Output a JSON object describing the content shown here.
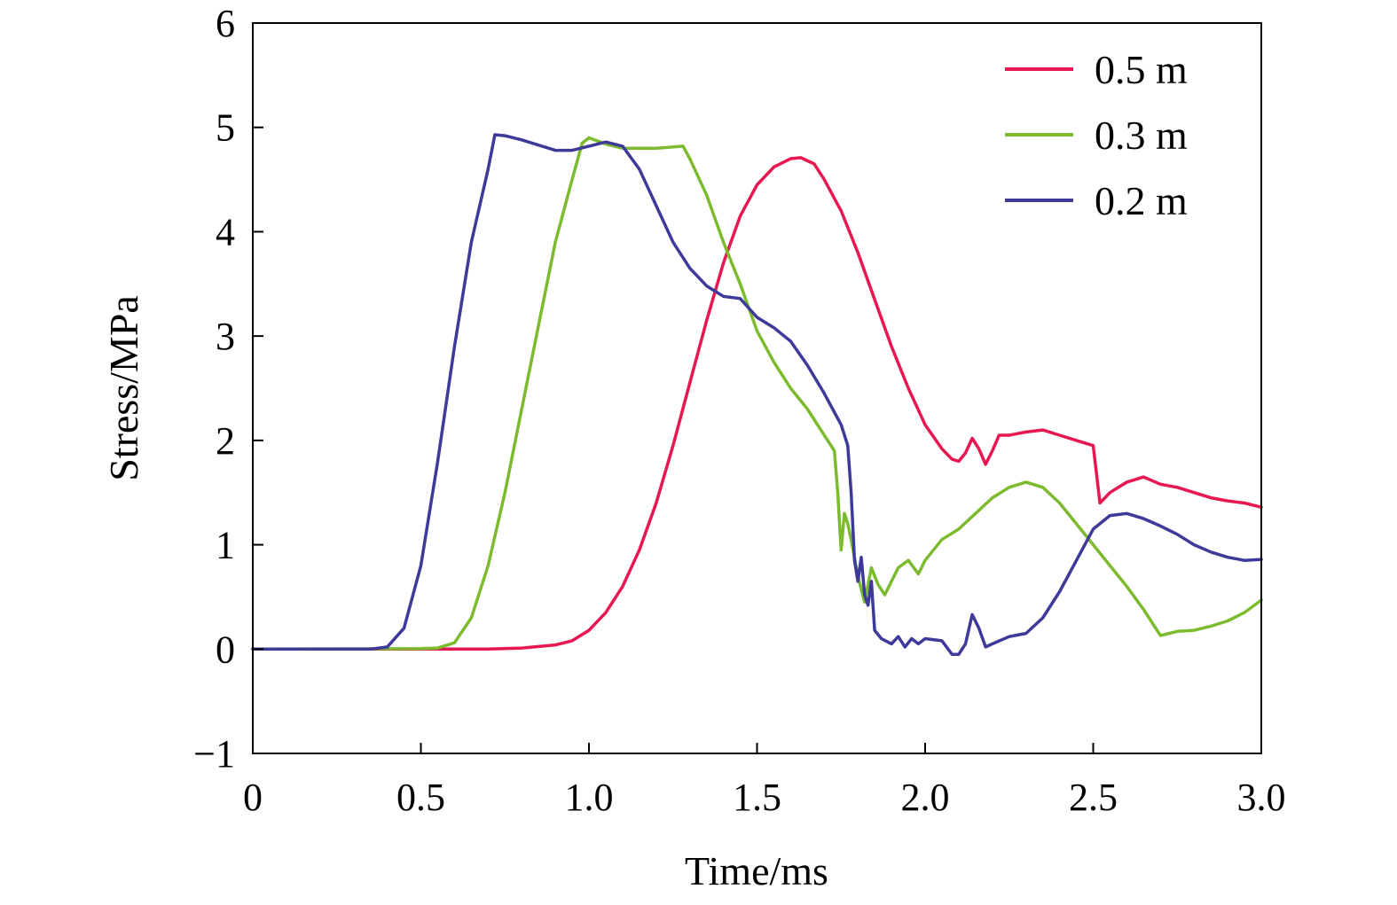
{
  "chart_data": {
    "type": "line",
    "title": "",
    "xlabel": "Time/ms",
    "ylabel": "Stress/MPa",
    "xlim": [
      0,
      3.0
    ],
    "ylim": [
      -1,
      6
    ],
    "xticks": [
      {
        "value": 0,
        "label": "0"
      },
      {
        "value": 0.5,
        "label": "0.5"
      },
      {
        "value": 1.0,
        "label": "1.0"
      },
      {
        "value": 1.5,
        "label": "1.5"
      },
      {
        "value": 2.0,
        "label": "2.0"
      },
      {
        "value": 2.5,
        "label": "2.5"
      },
      {
        "value": 3.0,
        "label": "3.0"
      }
    ],
    "yticks": [
      {
        "value": -1,
        "label": "−1"
      },
      {
        "value": 0,
        "label": "0"
      },
      {
        "value": 1,
        "label": "1"
      },
      {
        "value": 2,
        "label": "2"
      },
      {
        "value": 3,
        "label": "3"
      },
      {
        "value": 4,
        "label": "4"
      },
      {
        "value": 5,
        "label": "5"
      },
      {
        "value": 6,
        "label": "6"
      }
    ],
    "grid": false,
    "legend_position": "top-right",
    "series": [
      {
        "name": "0.5 m",
        "color": "#e8174f",
        "points": [
          [
            0,
            0
          ],
          [
            0.5,
            0
          ],
          [
            0.7,
            0
          ],
          [
            0.8,
            0.01
          ],
          [
            0.9,
            0.04
          ],
          [
            0.95,
            0.08
          ],
          [
            1.0,
            0.18
          ],
          [
            1.05,
            0.35
          ],
          [
            1.1,
            0.6
          ],
          [
            1.15,
            0.95
          ],
          [
            1.2,
            1.4
          ],
          [
            1.25,
            1.95
          ],
          [
            1.3,
            2.55
          ],
          [
            1.35,
            3.15
          ],
          [
            1.4,
            3.7
          ],
          [
            1.45,
            4.15
          ],
          [
            1.5,
            4.45
          ],
          [
            1.55,
            4.62
          ],
          [
            1.6,
            4.7
          ],
          [
            1.63,
            4.71
          ],
          [
            1.67,
            4.65
          ],
          [
            1.7,
            4.5
          ],
          [
            1.75,
            4.2
          ],
          [
            1.8,
            3.8
          ],
          [
            1.85,
            3.35
          ],
          [
            1.9,
            2.9
          ],
          [
            1.95,
            2.5
          ],
          [
            2.0,
            2.15
          ],
          [
            2.05,
            1.92
          ],
          [
            2.08,
            1.82
          ],
          [
            2.1,
            1.8
          ],
          [
            2.12,
            1.88
          ],
          [
            2.14,
            2.02
          ],
          [
            2.16,
            1.92
          ],
          [
            2.18,
            1.77
          ],
          [
            2.2,
            1.9
          ],
          [
            2.22,
            2.05
          ],
          [
            2.25,
            2.05
          ],
          [
            2.3,
            2.08
          ],
          [
            2.35,
            2.1
          ],
          [
            2.4,
            2.05
          ],
          [
            2.45,
            2.0
          ],
          [
            2.5,
            1.95
          ],
          [
            2.52,
            1.4
          ],
          [
            2.55,
            1.5
          ],
          [
            2.6,
            1.6
          ],
          [
            2.65,
            1.65
          ],
          [
            2.7,
            1.58
          ],
          [
            2.75,
            1.55
          ],
          [
            2.8,
            1.5
          ],
          [
            2.85,
            1.45
          ],
          [
            2.9,
            1.42
          ],
          [
            2.95,
            1.4
          ],
          [
            3.0,
            1.36
          ]
        ]
      },
      {
        "name": "0.3 m",
        "color": "#7cbb2e",
        "points": [
          [
            0,
            0
          ],
          [
            0.5,
            0.005
          ],
          [
            0.55,
            0.01
          ],
          [
            0.6,
            0.06
          ],
          [
            0.65,
            0.3
          ],
          [
            0.7,
            0.8
          ],
          [
            0.75,
            1.5
          ],
          [
            0.8,
            2.3
          ],
          [
            0.85,
            3.1
          ],
          [
            0.9,
            3.9
          ],
          [
            0.95,
            4.5
          ],
          [
            0.98,
            4.85
          ],
          [
            1.0,
            4.9
          ],
          [
            1.05,
            4.84
          ],
          [
            1.1,
            4.8
          ],
          [
            1.2,
            4.8
          ],
          [
            1.28,
            4.82
          ],
          [
            1.3,
            4.7
          ],
          [
            1.35,
            4.35
          ],
          [
            1.4,
            3.9
          ],
          [
            1.45,
            3.5
          ],
          [
            1.5,
            3.05
          ],
          [
            1.55,
            2.75
          ],
          [
            1.6,
            2.5
          ],
          [
            1.65,
            2.3
          ],
          [
            1.7,
            2.05
          ],
          [
            1.73,
            1.9
          ],
          [
            1.74,
            1.5
          ],
          [
            1.75,
            0.95
          ],
          [
            1.76,
            1.3
          ],
          [
            1.77,
            1.2
          ],
          [
            1.78,
            1.05
          ],
          [
            1.8,
            0.7
          ],
          [
            1.82,
            0.45
          ],
          [
            1.84,
            0.78
          ],
          [
            1.86,
            0.62
          ],
          [
            1.88,
            0.52
          ],
          [
            1.9,
            0.65
          ],
          [
            1.92,
            0.78
          ],
          [
            1.95,
            0.85
          ],
          [
            1.98,
            0.72
          ],
          [
            2.0,
            0.85
          ],
          [
            2.05,
            1.05
          ],
          [
            2.1,
            1.15
          ],
          [
            2.15,
            1.3
          ],
          [
            2.2,
            1.45
          ],
          [
            2.25,
            1.55
          ],
          [
            2.3,
            1.6
          ],
          [
            2.35,
            1.55
          ],
          [
            2.4,
            1.4
          ],
          [
            2.45,
            1.2
          ],
          [
            2.5,
            1.0
          ],
          [
            2.55,
            0.8
          ],
          [
            2.6,
            0.6
          ],
          [
            2.65,
            0.38
          ],
          [
            2.7,
            0.13
          ],
          [
            2.75,
            0.17
          ],
          [
            2.8,
            0.18
          ],
          [
            2.85,
            0.22
          ],
          [
            2.9,
            0.27
          ],
          [
            2.95,
            0.35
          ],
          [
            3.0,
            0.47
          ]
        ]
      },
      {
        "name": "0.2 m",
        "color": "#3d3a9a",
        "points": [
          [
            0,
            0
          ],
          [
            0.35,
            0
          ],
          [
            0.4,
            0.02
          ],
          [
            0.45,
            0.2
          ],
          [
            0.5,
            0.8
          ],
          [
            0.55,
            1.8
          ],
          [
            0.6,
            2.9
          ],
          [
            0.65,
            3.9
          ],
          [
            0.7,
            4.6
          ],
          [
            0.72,
            4.93
          ],
          [
            0.75,
            4.92
          ],
          [
            0.8,
            4.88
          ],
          [
            0.85,
            4.83
          ],
          [
            0.9,
            4.78
          ],
          [
            0.95,
            4.78
          ],
          [
            1.0,
            4.82
          ],
          [
            1.05,
            4.86
          ],
          [
            1.1,
            4.82
          ],
          [
            1.15,
            4.6
          ],
          [
            1.2,
            4.25
          ],
          [
            1.25,
            3.9
          ],
          [
            1.3,
            3.65
          ],
          [
            1.35,
            3.48
          ],
          [
            1.4,
            3.38
          ],
          [
            1.45,
            3.36
          ],
          [
            1.5,
            3.18
          ],
          [
            1.55,
            3.08
          ],
          [
            1.6,
            2.95
          ],
          [
            1.65,
            2.72
          ],
          [
            1.7,
            2.45
          ],
          [
            1.75,
            2.15
          ],
          [
            1.77,
            1.95
          ],
          [
            1.78,
            1.5
          ],
          [
            1.79,
            0.85
          ],
          [
            1.8,
            0.65
          ],
          [
            1.81,
            0.88
          ],
          [
            1.82,
            0.52
          ],
          [
            1.83,
            0.42
          ],
          [
            1.84,
            0.65
          ],
          [
            1.85,
            0.18
          ],
          [
            1.87,
            0.1
          ],
          [
            1.9,
            0.05
          ],
          [
            1.92,
            0.12
          ],
          [
            1.94,
            0.02
          ],
          [
            1.96,
            0.1
          ],
          [
            1.98,
            0.05
          ],
          [
            2.0,
            0.1
          ],
          [
            2.05,
            0.08
          ],
          [
            2.08,
            -0.05
          ],
          [
            2.1,
            -0.05
          ],
          [
            2.12,
            0.05
          ],
          [
            2.14,
            0.33
          ],
          [
            2.16,
            0.2
          ],
          [
            2.18,
            0.02
          ],
          [
            2.2,
            0.05
          ],
          [
            2.25,
            0.12
          ],
          [
            2.3,
            0.15
          ],
          [
            2.35,
            0.3
          ],
          [
            2.4,
            0.55
          ],
          [
            2.45,
            0.85
          ],
          [
            2.5,
            1.15
          ],
          [
            2.55,
            1.28
          ],
          [
            2.6,
            1.3
          ],
          [
            2.65,
            1.25
          ],
          [
            2.7,
            1.18
          ],
          [
            2.75,
            1.1
          ],
          [
            2.8,
            1.0
          ],
          [
            2.85,
            0.93
          ],
          [
            2.9,
            0.88
          ],
          [
            2.95,
            0.85
          ],
          [
            3.0,
            0.86
          ]
        ]
      }
    ]
  }
}
